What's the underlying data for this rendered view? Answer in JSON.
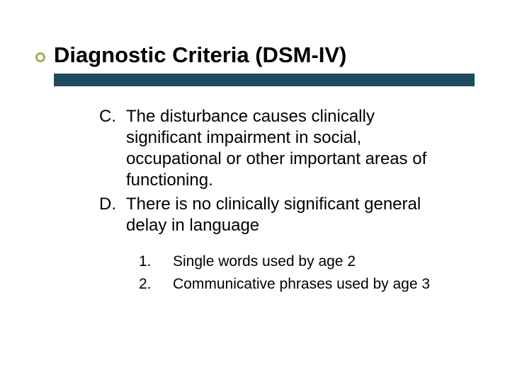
{
  "title": "Diagnostic Criteria (DSM-IV)",
  "title_fontsize": 31,
  "title_fontweight": "bold",
  "title_color": "#000000",
  "bullet_ring_color": "#9cb356",
  "underline_color": "#1f4a5f",
  "underline_height": 18,
  "background_color": "#ffffff",
  "body_fontsize": 24,
  "body_color": "#000000",
  "sub_fontsize": 21,
  "items": [
    {
      "marker": "C.",
      "text": "The disturbance causes clinically significant impairment in social, occupational or other important areas of functioning."
    },
    {
      "marker": "D.",
      "text": "There is no clinically significant general delay in language"
    }
  ],
  "subitems": [
    {
      "marker": "1.",
      "text": "Single words used by age 2"
    },
    {
      "marker": "2.",
      "text": "Communicative phrases used by age 3"
    }
  ]
}
